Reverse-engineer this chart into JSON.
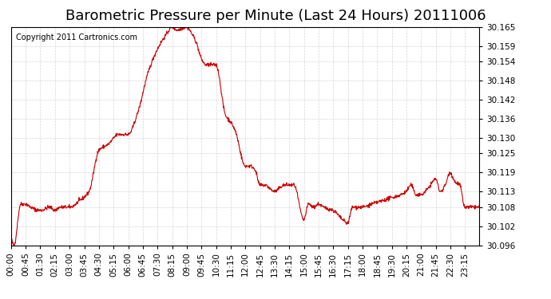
{
  "title": "Barometric Pressure per Minute (Last 24 Hours) 20111006",
  "copyright": "Copyright 2011 Cartronics.com",
  "line_color": "#cc0000",
  "background_color": "#ffffff",
  "plot_bg_color": "#ffffff",
  "grid_color": "#cccccc",
  "ylim": [
    30.096,
    30.165
  ],
  "yticks": [
    30.096,
    30.102,
    30.108,
    30.113,
    30.119,
    30.125,
    30.13,
    30.136,
    30.142,
    30.148,
    30.154,
    30.159,
    30.165
  ],
  "xtick_labels": [
    "00:00",
    "00:45",
    "01:30",
    "02:15",
    "03:00",
    "03:45",
    "04:30",
    "05:15",
    "06:00",
    "06:45",
    "07:30",
    "08:15",
    "09:00",
    "09:45",
    "10:30",
    "11:15",
    "12:00",
    "12:45",
    "13:30",
    "14:15",
    "15:00",
    "15:45",
    "16:30",
    "17:15",
    "18:00",
    "18:45",
    "19:30",
    "20:15",
    "21:00",
    "21:45",
    "22:30",
    "23:15"
  ],
  "title_fontsize": 13,
  "tick_fontsize": 7.5,
  "copyright_fontsize": 7
}
